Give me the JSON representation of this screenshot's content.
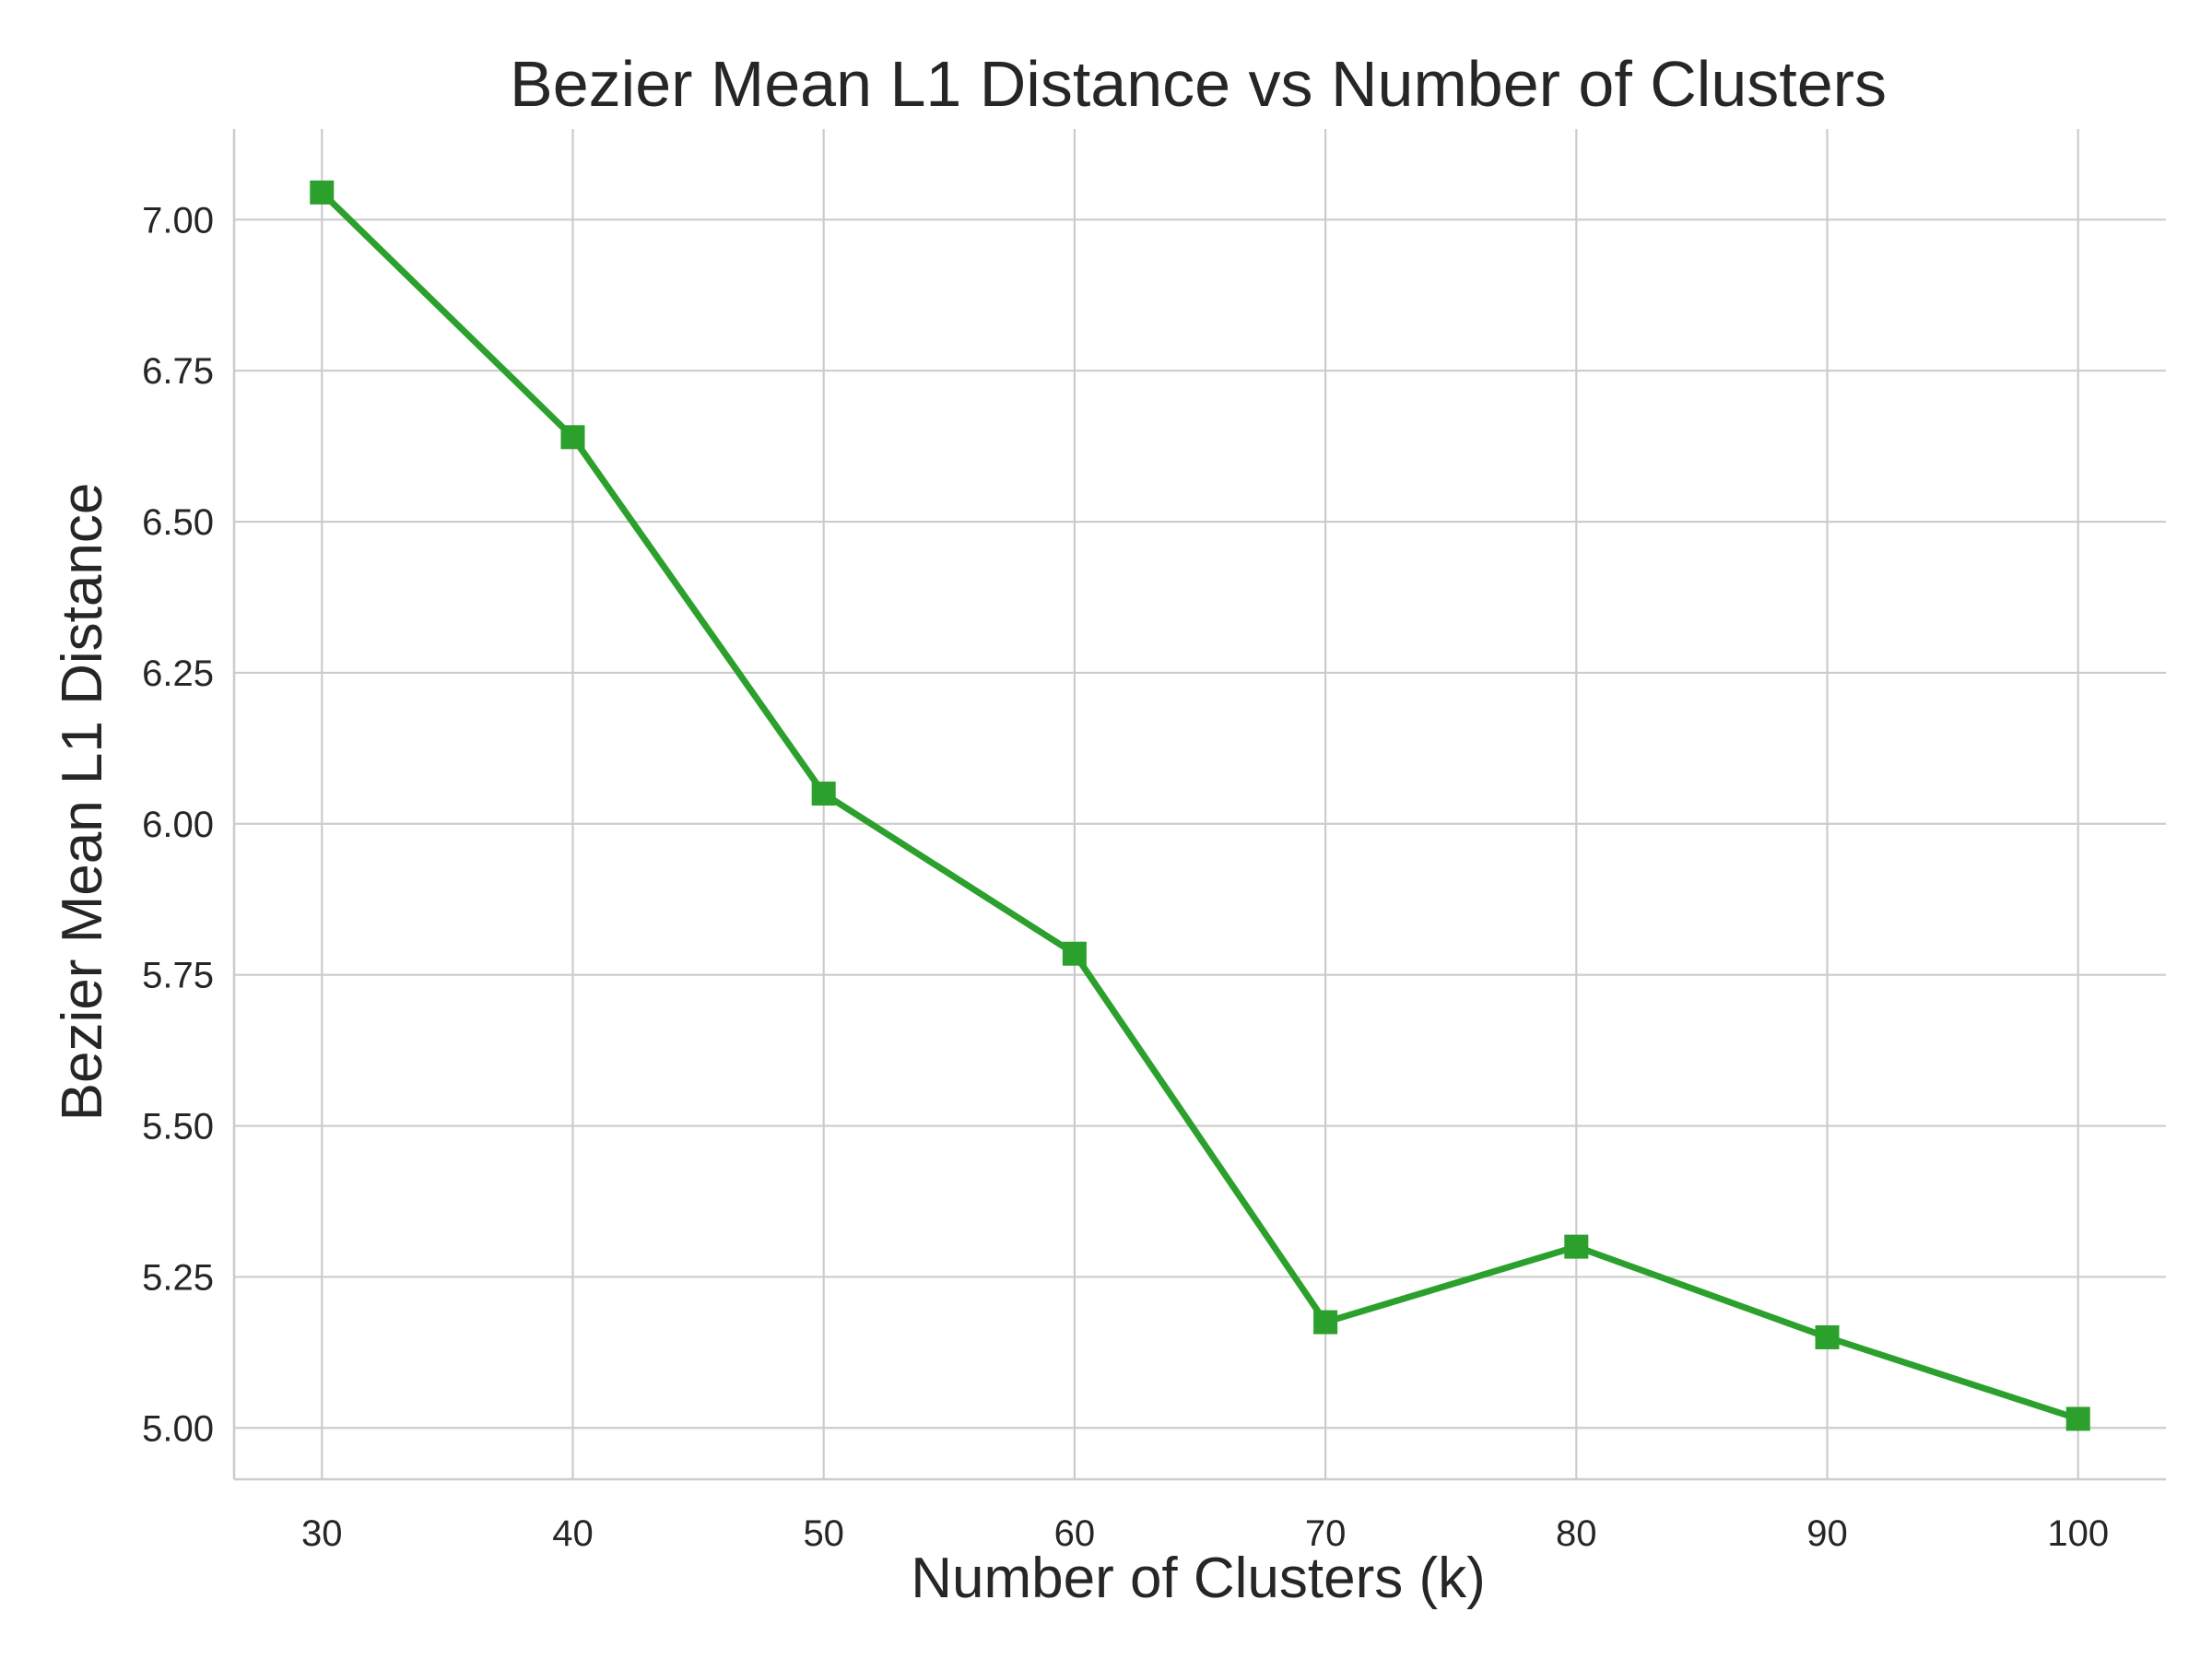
{
  "chart_data": {
    "type": "line",
    "title": "Bezier Mean L1 Distance vs Number of Clusters",
    "xlabel": "Number of Clusters (k)",
    "ylabel": "Bezier Mean L1 Distance",
    "x": [
      30,
      40,
      50,
      60,
      70,
      80,
      90,
      100
    ],
    "xticks": [
      "30",
      "40",
      "50",
      "60",
      "70",
      "80",
      "90",
      "100"
    ],
    "yticks": [
      "5.00",
      "5.25",
      "5.50",
      "5.75",
      "6.00",
      "6.25",
      "6.50",
      "6.75",
      "7.00"
    ],
    "xlim": [
      26.5,
      103.5
    ],
    "ylim": [
      4.915,
      7.15
    ],
    "grid": true,
    "legend": false,
    "series": [
      {
        "marker": "square",
        "color": "#2ca02c",
        "values": [
          7.045,
          6.64,
          6.05,
          5.785,
          5.175,
          5.3,
          5.15,
          5.015
        ]
      }
    ]
  }
}
